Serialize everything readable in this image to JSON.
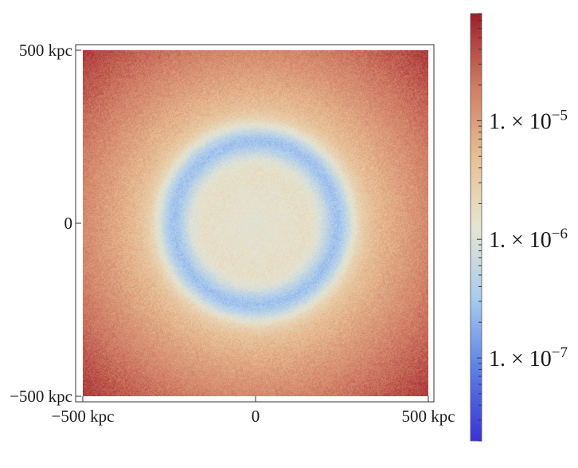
{
  "chart_data": {
    "type": "heatmap",
    "title": "",
    "xlabel": "",
    "ylabel": "",
    "x_ticks": [
      {
        "value": -500,
        "label": "−500 kpc"
      },
      {
        "value": 0,
        "label": "0"
      },
      {
        "value": 500,
        "label": "500 kpc"
      }
    ],
    "y_ticks": [
      {
        "value": 500,
        "label": "500 kpc"
      },
      {
        "value": 0,
        "label": "0"
      },
      {
        "value": -500,
        "label": "−500 kpc"
      }
    ],
    "xlim": [
      -500,
      500
    ],
    "ylim": [
      -500,
      500
    ],
    "grid": false,
    "colorbar": {
      "scale": "log",
      "range": [
        2e-08,
        8e-05
      ],
      "colormap": [
        "#3b31d6",
        "#5b7fe6",
        "#a9cbee",
        "#e6e5d2",
        "#e8bf94",
        "#cf7a62",
        "#9e1e2c"
      ],
      "ticks": [
        {
          "value": 1e-07,
          "mantissa": "1. × 10",
          "exponent": "−7"
        },
        {
          "value": 1e-06,
          "mantissa": "1. × 10",
          "exponent": "−6"
        },
        {
          "value": 1e-05,
          "mantissa": "1. × 10",
          "exponent": "−5"
        }
      ]
    },
    "field": {
      "description_units": "kpc",
      "ring_radius": 240,
      "ring_width": 50,
      "center_value": 1.2e-06,
      "ring_min_value": 2.5e-07,
      "corner_value": 4.5e-05
    }
  }
}
